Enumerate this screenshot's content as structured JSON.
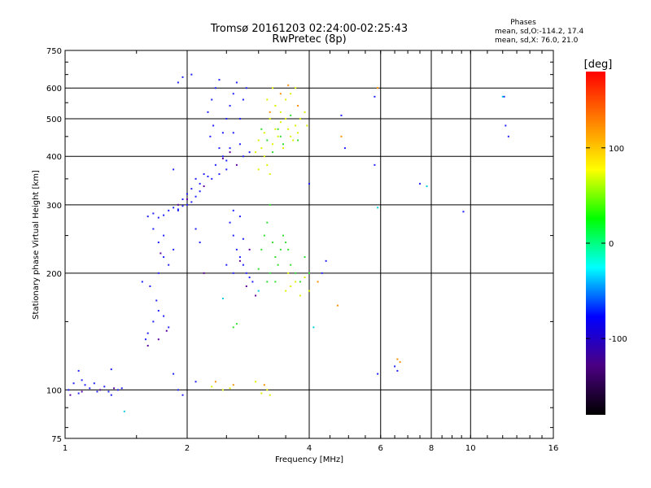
{
  "chart_data": {
    "type": "scatter",
    "title": "Tromsø 20161203 02:24:00-02:25:43",
    "subtitle": "RwPretec (8p)",
    "xlabel": "Frequency [MHz]",
    "ylabel": "Stationary phase Virtual Height [km]",
    "x_scale": "log",
    "y_scale": "log",
    "xlim": [
      1,
      16
    ],
    "ylim": [
      75,
      750
    ],
    "x_ticks": [
      1,
      2,
      4,
      6,
      8,
      10,
      16
    ],
    "x_gridlines": [
      2,
      4,
      6,
      8,
      10
    ],
    "x_tick_labels": [
      "1",
      "2",
      "4",
      "6",
      "8",
      "10",
      "16"
    ],
    "y_ticks": [
      75,
      100,
      200,
      300,
      400,
      500,
      600,
      750
    ],
    "y_gridlines": [
      100,
      200,
      300,
      400,
      500,
      600
    ],
    "y_tick_labels": [
      "75",
      "100",
      "200",
      "300",
      "400",
      "500",
      "600",
      "750"
    ],
    "grid": true,
    "stats": {
      "heading": "Phases",
      "line_o": "mean, sd,O:-114.2, 17.4",
      "line_x": "mean, sd,X:  76.0, 21.0"
    },
    "colorbar": {
      "label": "[deg]",
      "range": [
        -180,
        180
      ],
      "ticks": [
        100,
        0,
        -100
      ],
      "tick_labels": [
        "100",
        "0",
        "-100"
      ],
      "colors": [
        "#ff0000",
        "#ff8000",
        "#ffff00",
        "#00ff00",
        "#00ffff",
        "#0000ff",
        "#4b0082",
        "#000000"
      ],
      "placement": "right"
    },
    "series": [
      {
        "phase_deg": -110,
        "color": "#2020ff",
        "points": [
          [
            1.02,
            100
          ],
          [
            1.05,
            104
          ],
          [
            1.08,
            98
          ],
          [
            1.12,
            103
          ],
          [
            1.15,
            101
          ],
          [
            1.2,
            99
          ],
          [
            1.25,
            102
          ],
          [
            1.3,
            97
          ],
          [
            1.35,
            100
          ],
          [
            1.1,
            106
          ],
          [
            1.18,
            104
          ],
          [
            1.28,
            99
          ],
          [
            1.38,
            101
          ],
          [
            1.08,
            112
          ],
          [
            1.3,
            113
          ],
          [
            1.6,
            280
          ],
          [
            1.65,
            285
          ],
          [
            1.7,
            278
          ],
          [
            1.75,
            282
          ],
          [
            1.8,
            290
          ],
          [
            1.85,
            295
          ],
          [
            1.9,
            292
          ],
          [
            1.95,
            298
          ],
          [
            2.0,
            300
          ],
          [
            2.05,
            305
          ],
          [
            2.1,
            315
          ],
          [
            2.15,
            325
          ],
          [
            1.95,
            310
          ],
          [
            2.05,
            330
          ],
          [
            2.1,
            350
          ],
          [
            2.2,
            360
          ],
          [
            2.0,
            320
          ],
          [
            2.15,
            340
          ],
          [
            2.25,
            355
          ],
          [
            1.85,
            370
          ],
          [
            1.9,
            290
          ],
          [
            2.25,
            520
          ],
          [
            2.3,
            560
          ],
          [
            2.35,
            600
          ],
          [
            2.4,
            630
          ],
          [
            2.32,
            480
          ],
          [
            2.28,
            450
          ],
          [
            2.4,
            420
          ],
          [
            2.45,
            400
          ],
          [
            2.35,
            380
          ],
          [
            2.5,
            390
          ],
          [
            2.55,
            420
          ],
          [
            2.45,
            460
          ],
          [
            2.5,
            500
          ],
          [
            2.55,
            540
          ],
          [
            2.6,
            580
          ],
          [
            2.65,
            620
          ],
          [
            2.6,
            460
          ],
          [
            2.7,
            500
          ],
          [
            2.75,
            560
          ],
          [
            2.8,
            600
          ],
          [
            2.7,
            430
          ],
          [
            2.75,
            400
          ],
          [
            2.85,
            410
          ],
          [
            2.3,
            350
          ],
          [
            2.4,
            360
          ],
          [
            2.5,
            370
          ],
          [
            1.9,
            620
          ],
          [
            1.95,
            640
          ],
          [
            2.05,
            650
          ],
          [
            1.7,
            200
          ],
          [
            1.75,
            220
          ],
          [
            1.8,
            210
          ],
          [
            1.7,
            240
          ],
          [
            1.75,
            250
          ],
          [
            1.65,
            260
          ],
          [
            1.6,
            140
          ],
          [
            1.65,
            150
          ],
          [
            1.7,
            160
          ],
          [
            1.75,
            155
          ],
          [
            1.68,
            170
          ],
          [
            1.8,
            145
          ],
          [
            1.58,
            135
          ],
          [
            1.55,
            190
          ],
          [
            1.62,
            185
          ],
          [
            1.85,
            230
          ],
          [
            2.1,
            260
          ],
          [
            2.15,
            240
          ],
          [
            2.6,
            250
          ],
          [
            2.65,
            230
          ],
          [
            2.7,
            220
          ],
          [
            2.75,
            210
          ],
          [
            2.8,
            200
          ],
          [
            2.85,
            195
          ],
          [
            2.9,
            190
          ],
          [
            2.55,
            270
          ],
          [
            2.6,
            290
          ],
          [
            2.7,
            280
          ],
          [
            2.5,
            210
          ],
          [
            2.6,
            200
          ],
          [
            2.75,
            245
          ],
          [
            1.9,
            100
          ],
          [
            1.95,
            97
          ],
          [
            2.1,
            105
          ],
          [
            1.85,
            110
          ],
          [
            4.0,
            340
          ],
          [
            4.3,
            200
          ],
          [
            4.4,
            215
          ],
          [
            4.8,
            510
          ],
          [
            4.9,
            420
          ],
          [
            5.8,
            380
          ],
          [
            5.8,
            570
          ],
          [
            5.9,
            110
          ],
          [
            6.5,
            115
          ],
          [
            6.6,
            112
          ],
          [
            7.5,
            340
          ],
          [
            9.6,
            288
          ],
          [
            12.1,
            570
          ],
          [
            12.2,
            480
          ],
          [
            12.4,
            450
          ]
        ]
      },
      {
        "phase_deg": -140,
        "color": "#5a00a0",
        "points": [
          [
            1.03,
            97
          ],
          [
            1.1,
            99
          ],
          [
            1.22,
            100
          ],
          [
            1.32,
            101
          ],
          [
            1.6,
            130
          ],
          [
            1.7,
            135
          ],
          [
            1.78,
            142
          ],
          [
            1.9,
            300
          ],
          [
            2.0,
            310
          ],
          [
            2.2,
            335
          ],
          [
            2.45,
            395
          ],
          [
            2.55,
            410
          ],
          [
            2.65,
            380
          ],
          [
            2.7,
            215
          ],
          [
            2.8,
            185
          ],
          [
            2.95,
            175
          ],
          [
            2.85,
            230
          ],
          [
            1.72,
            225
          ],
          [
            2.2,
            200
          ]
        ]
      },
      {
        "phase_deg": 100,
        "color": "#e0f000",
        "points": [
          [
            3.0,
            440
          ],
          [
            3.05,
            420
          ],
          [
            3.1,
            400
          ],
          [
            3.15,
            380
          ],
          [
            3.2,
            360
          ],
          [
            3.25,
            430
          ],
          [
            3.3,
            470
          ],
          [
            3.35,
            450
          ],
          [
            3.1,
            460
          ],
          [
            3.2,
            500
          ],
          [
            3.3,
            540
          ],
          [
            3.4,
            520
          ],
          [
            3.5,
            560
          ],
          [
            3.6,
            580
          ],
          [
            3.7,
            600
          ],
          [
            3.5,
            500
          ],
          [
            3.55,
            470
          ],
          [
            3.6,
            450
          ],
          [
            3.65,
            440
          ],
          [
            3.7,
            480
          ],
          [
            3.75,
            460
          ],
          [
            3.8,
            500
          ],
          [
            3.9,
            520
          ],
          [
            3.95,
            480
          ],
          [
            3.45,
            420
          ],
          [
            3.4,
            490
          ],
          [
            3.15,
            560
          ],
          [
            3.25,
            600
          ],
          [
            3.0,
            370
          ],
          [
            2.95,
            410
          ],
          [
            3.5,
            180
          ],
          [
            3.6,
            185
          ],
          [
            3.7,
            190
          ],
          [
            3.8,
            175
          ],
          [
            3.55,
            200
          ],
          [
            3.9,
            195
          ],
          [
            4.0,
            180
          ],
          [
            2.3,
            102
          ],
          [
            2.45,
            100
          ],
          [
            2.55,
            101
          ],
          [
            3.05,
            98
          ],
          [
            3.15,
            100
          ],
          [
            2.95,
            105
          ],
          [
            3.2,
            97
          ]
        ]
      },
      {
        "phase_deg": 20,
        "color": "#30e030",
        "points": [
          [
            3.05,
            470
          ],
          [
            3.15,
            440
          ],
          [
            3.25,
            410
          ],
          [
            3.35,
            470
          ],
          [
            3.4,
            450
          ],
          [
            3.45,
            430
          ],
          [
            3.6,
            510
          ],
          [
            3.75,
            440
          ],
          [
            3.1,
            250
          ],
          [
            3.15,
            270
          ],
          [
            3.2,
            300
          ],
          [
            3.25,
            240
          ],
          [
            3.3,
            220
          ],
          [
            3.35,
            210
          ],
          [
            3.4,
            230
          ],
          [
            3.45,
            250
          ],
          [
            3.5,
            240
          ],
          [
            3.55,
            230
          ],
          [
            3.6,
            210
          ],
          [
            3.7,
            200
          ],
          [
            3.8,
            190
          ],
          [
            3.9,
            220
          ],
          [
            3.2,
            200
          ],
          [
            3.3,
            190
          ],
          [
            3.05,
            230
          ],
          [
            3.0,
            205
          ],
          [
            3.15,
            190
          ],
          [
            2.6,
            145
          ],
          [
            2.65,
            148
          ],
          [
            4.0,
            200
          ]
        ]
      },
      {
        "phase_deg": 130,
        "color": "#ff9000",
        "points": [
          [
            3.2,
            520
          ],
          [
            3.4,
            580
          ],
          [
            3.55,
            610
          ],
          [
            3.75,
            540
          ],
          [
            2.35,
            105
          ],
          [
            2.6,
            103
          ],
          [
            3.1,
            103
          ],
          [
            4.7,
            165
          ],
          [
            5.9,
            600
          ],
          [
            6.6,
            120
          ],
          [
            6.7,
            118
          ],
          [
            4.8,
            450
          ],
          [
            4.2,
            190
          ]
        ]
      },
      {
        "phase_deg": -10,
        "color": "#00d0e0",
        "points": [
          [
            1.4,
            88
          ],
          [
            2.45,
            172
          ],
          [
            3.0,
            180
          ],
          [
            4.1,
            145
          ],
          [
            7.8,
            335
          ],
          [
            5.9,
            295
          ],
          [
            12.0,
            570
          ]
        ]
      }
    ]
  }
}
